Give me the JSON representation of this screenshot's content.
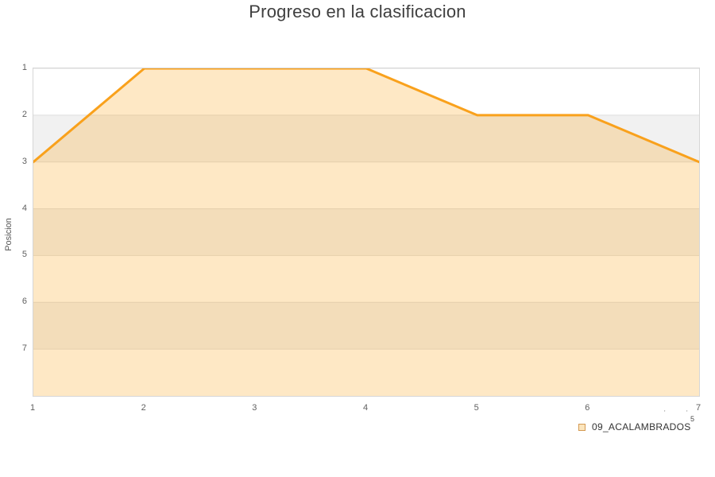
{
  "chart_data": {
    "type": "area",
    "title": "Progreso en la clasificacion",
    "xlabel": "",
    "ylabel": "Posicion",
    "x": [
      1,
      2,
      3,
      4,
      5,
      6,
      7
    ],
    "series": [
      {
        "name": "09_ACALAMBRADOS",
        "values": [
          3,
          1,
          1,
          1,
          2,
          2,
          3
        ]
      }
    ],
    "xlim": [
      1,
      7
    ],
    "ylim": [
      1,
      8
    ],
    "y_axis_reversed": true,
    "xticks": [
      "1",
      "2",
      "3",
      "4",
      "5",
      "6",
      "7"
    ],
    "yticks": [
      "1",
      "2",
      "3",
      "4",
      "5",
      "6",
      "7"
    ],
    "grid": "horizontal-only",
    "legend_position": "bottom-right",
    "band_colors": [
      "#ffffff",
      "#f1f1f1"
    ],
    "gridline_color": "#dedede",
    "plot_border_color": "#d6d6d6",
    "line_color": "#f9a11c",
    "fill_color": "rgba(250,167,32,0.26)"
  },
  "legend": {
    "items": [
      {
        "label": "09_ACALAMBRADOS",
        "swatch_fill": "#fbe5bd",
        "swatch_border": "#d49a53"
      }
    ]
  },
  "artifacts": {
    "superscript": "5",
    "marks": [
      "'",
      "'"
    ]
  }
}
